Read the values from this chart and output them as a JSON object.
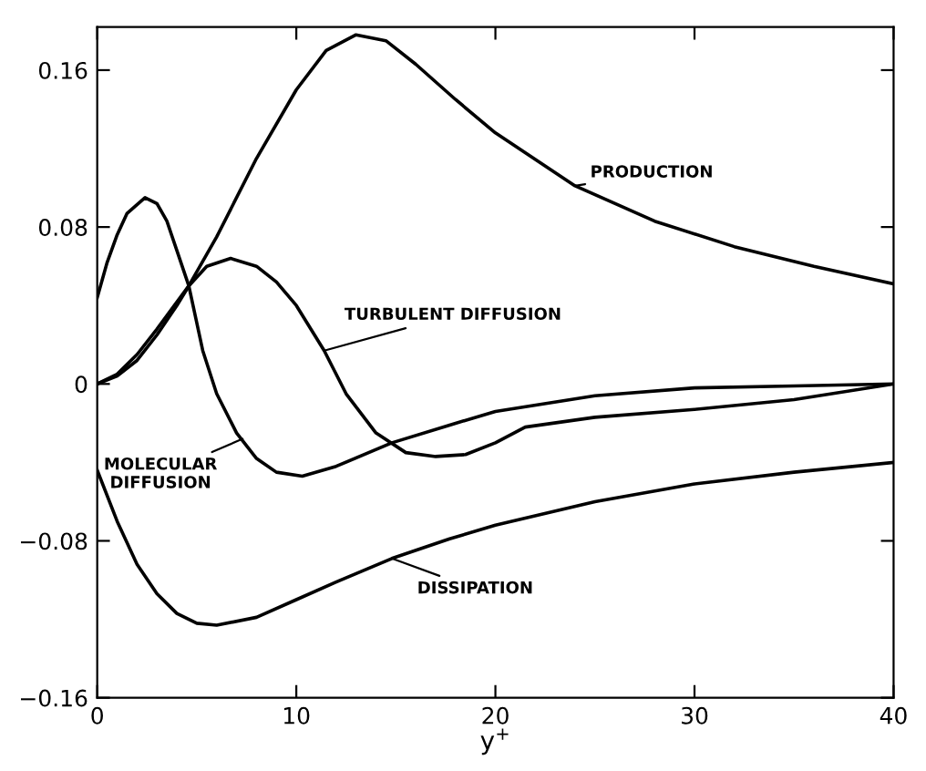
{
  "chart_data": {
    "type": "line",
    "xlabel": "y$^{+}$",
    "xlim": [
      0,
      40
    ],
    "xticks": [
      0,
      10,
      20,
      30,
      40
    ],
    "ylim": [
      -0.16,
      0.182
    ],
    "yticks": [
      {
        "value": -0.16,
        "label": "−0.16"
      },
      {
        "value": -0.08,
        "label": "−0.08"
      },
      0,
      0.08,
      0.16
    ],
    "grid": false,
    "legend": false,
    "marker": "none",
    "line_style": "solid",
    "series": [
      {
        "color": "#000000",
        "x": [
          0,
          1,
          2,
          3,
          4,
          4.6,
          6,
          8,
          10,
          11.5,
          13,
          14.5,
          16,
          18,
          20,
          24,
          28,
          32,
          36,
          40
        ],
        "values": [
          0,
          0.004,
          0.012,
          0.025,
          0.04,
          0.05,
          0.075,
          0.115,
          0.15,
          0.17,
          0.178,
          0.175,
          0.163,
          0.145,
          0.128,
          0.101,
          0.083,
          0.07,
          0.06,
          0.051
        ]
      },
      {
        "color": "#000000",
        "x": [
          0,
          1,
          2,
          3,
          4.6,
          5.5,
          6.7,
          8,
          9,
          10,
          11.4,
          12.5,
          14,
          15.5,
          17,
          18.5,
          20,
          21.5,
          25,
          30,
          35,
          40
        ],
        "values": [
          0,
          0.005,
          0.015,
          0.028,
          0.05,
          0.06,
          0.064,
          0.06,
          0.052,
          0.04,
          0.017,
          -0.005,
          -0.025,
          -0.035,
          -0.037,
          -0.036,
          -0.03,
          -0.022,
          -0.017,
          -0.013,
          -0.008,
          0
        ]
      },
      {
        "color": "#000000",
        "x": [
          0,
          0.5,
          1,
          1.5,
          2.4,
          3,
          3.5,
          4,
          4.6,
          5.3,
          6,
          7,
          8,
          9,
          10.3,
          12,
          14.8,
          17.7,
          20,
          25,
          30,
          35,
          40
        ],
        "values": [
          0.044,
          0.062,
          0.076,
          0.087,
          0.095,
          0.092,
          0.083,
          0.068,
          0.05,
          0.017,
          -0.005,
          -0.025,
          -0.038,
          -0.045,
          -0.047,
          -0.042,
          -0.03,
          -0.021,
          -0.014,
          -0.006,
          -0.002,
          -0.001,
          0
        ]
      },
      {
        "color": "#000000",
        "x": [
          0,
          1,
          2,
          3,
          4,
          5,
          6,
          8,
          10,
          12,
          14.8,
          17.7,
          20,
          25,
          30,
          35,
          40
        ],
        "values": [
          -0.044,
          -0.07,
          -0.092,
          -0.107,
          -0.117,
          -0.122,
          -0.123,
          -0.119,
          -0.11,
          -0.101,
          -0.089,
          -0.079,
          -0.072,
          -0.06,
          -0.051,
          -0.045,
          -0.04
        ]
      }
    ],
    "annotations": [
      {
        "text": "PRODUCTION",
        "x": 24,
        "y": 0.101
      },
      {
        "text": "TURBULENT DIFFUSION",
        "x": 11.4,
        "y": 0.017
      },
      {
        "text": "MOLECULAR\nDIFFUSION",
        "x": 7.3,
        "y": -0.028
      },
      {
        "text": "DISSIPATION",
        "x": 14.8,
        "y": -0.089
      }
    ]
  }
}
